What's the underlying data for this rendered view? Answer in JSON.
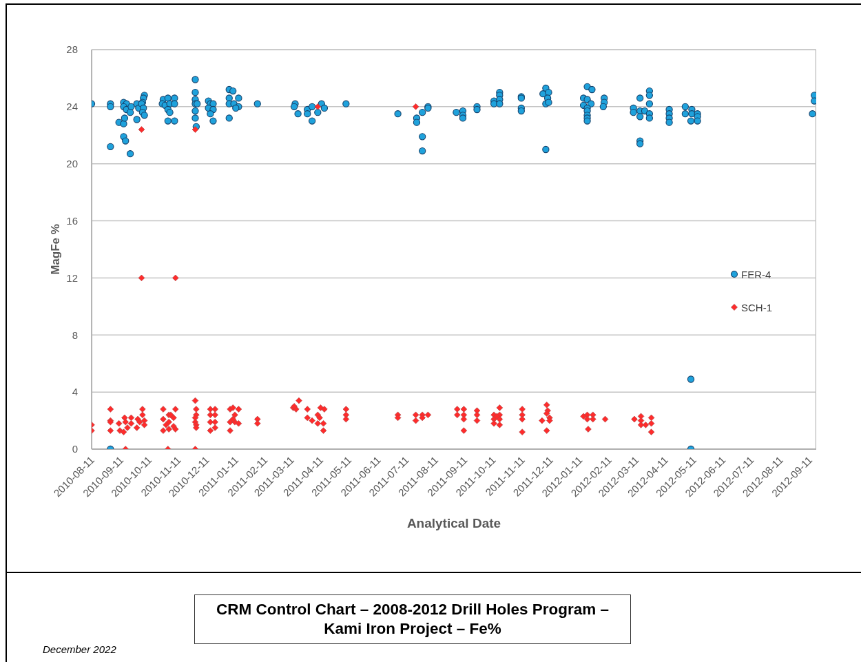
{
  "chart_data": {
    "type": "scatter",
    "title": "CRM Control Chart – 2008-2012 Drill Holes Program – Kami Iron Project – Fe%",
    "xlabel": "Analytical Date",
    "ylabel": "MagFe %",
    "annotations": [
      "December 2022"
    ],
    "xlim": [
      "2010-08-11",
      "2012-09-18"
    ],
    "xticks": [
      "2010-08-11",
      "2010-09-11",
      "2010-10-11",
      "2010-11-11",
      "2010-12-11",
      "2011-01-11",
      "2011-02-11",
      "2011-03-11",
      "2011-04-11",
      "2011-05-11",
      "2011-06-11",
      "2011-07-11",
      "2011-08-11",
      "2011-09-11",
      "2011-10-11",
      "2011-11-11",
      "2011-12-11",
      "2012-01-11",
      "2012-02-11",
      "2012-03-11",
      "2012-04-11",
      "2012-05-11",
      "2012-06-11",
      "2012-07-11",
      "2012-08-11",
      "2012-09-11"
    ],
    "ylim": [
      0,
      28
    ],
    "yticks": [
      0,
      4,
      8,
      12,
      16,
      20,
      24,
      28
    ],
    "grid": "y",
    "legend": "right",
    "series": [
      {
        "name": "FER-4",
        "color": "#1fa2dc",
        "marker": "circle",
        "x": [
          "2010-08-11",
          "2010-08-31",
          "2010-08-31",
          "2010-08-31",
          "2010-08-31",
          "2010-09-09",
          "2010-09-14",
          "2010-09-15",
          "2010-09-14",
          "2010-09-16",
          "2010-09-21",
          "2010-09-14",
          "2010-09-17",
          "2010-09-14",
          "2010-09-17",
          "2010-09-22",
          "2010-09-21",
          "2010-09-28",
          "2010-09-28",
          "2010-09-30",
          "2010-10-06",
          "2010-10-05",
          "2010-10-04",
          "2010-10-03",
          "2010-10-05",
          "2010-10-04",
          "2010-10-06",
          "2010-10-26",
          "2010-10-31",
          "2010-11-07",
          "2010-10-25",
          "2010-10-28",
          "2010-11-02",
          "2010-11-07",
          "2010-10-31",
          "2010-11-02",
          "2010-10-31",
          "2010-11-07",
          "2010-11-29",
          "2010-11-29",
          "2010-11-29",
          "2010-11-29",
          "2010-12-01",
          "2010-11-29",
          "2010-11-29",
          "2010-11-30",
          "2010-12-13",
          "2010-12-15",
          "2010-12-18",
          "2010-12-13",
          "2010-12-18",
          "2010-12-15",
          "2010-12-18",
          "2011-01-04",
          "2011-01-08",
          "2011-01-04",
          "2011-01-14",
          "2011-01-04",
          "2011-01-09",
          "2011-01-14",
          "2011-01-11",
          "2011-01-04",
          "2011-02-03",
          "2011-03-15",
          "2011-03-14",
          "2011-03-18",
          "2011-03-28",
          "2011-03-28",
          "2011-04-02",
          "2011-04-02",
          "2011-04-08",
          "2011-04-12",
          "2011-04-15",
          "2011-05-08",
          "2011-07-02",
          "2011-07-22",
          "2011-07-22",
          "2011-07-28",
          "2011-08-03",
          "2011-08-03",
          "2011-07-28",
          "2011-07-28",
          "2011-09-02",
          "2011-09-09",
          "2011-09-09",
          "2011-09-09",
          "2011-09-24",
          "2011-09-24",
          "2011-10-12",
          "2011-10-12",
          "2011-10-18",
          "2011-10-18",
          "2011-10-18",
          "2011-10-18",
          "2011-11-10",
          "2011-11-10",
          "2011-11-10",
          "2011-11-10",
          "2011-12-06",
          "2011-12-03",
          "2011-12-09",
          "2011-12-08",
          "2011-12-06",
          "2011-12-09",
          "2011-12-06",
          "2012-01-19",
          "2012-01-24",
          "2012-01-15",
          "2012-01-19",
          "2012-01-23",
          "2012-01-15",
          "2012-01-19",
          "2012-01-19",
          "2012-01-19",
          "2012-01-19",
          "2012-01-19",
          "2012-02-06",
          "2012-02-06",
          "2012-02-05",
          "2012-03-08",
          "2012-03-08",
          "2012-03-15",
          "2012-03-15",
          "2012-03-15",
          "2012-03-20",
          "2012-03-25",
          "2012-03-25",
          "2012-03-25",
          "2012-03-25",
          "2012-03-25",
          "2012-03-15",
          "2012-03-15",
          "2012-04-15",
          "2012-04-15",
          "2012-04-15",
          "2012-04-15",
          "2012-05-02",
          "2012-05-02",
          "2012-05-09",
          "2012-05-09",
          "2012-05-08",
          "2012-05-15",
          "2012-05-15",
          "2012-05-15",
          "2012-05-08",
          "2012-05-08",
          "2012-09-16",
          "2012-09-16",
          "2012-09-14"
        ],
        "values": [
          24.2,
          24.2,
          24.0,
          21.2,
          0.0,
          22.9,
          22.8,
          23.2,
          21.9,
          21.6,
          20.7,
          24.3,
          24.2,
          24.0,
          23.8,
          24.0,
          23.6,
          24.2,
          23.1,
          23.9,
          24.8,
          24.6,
          24.3,
          24.2,
          23.9,
          23.6,
          23.4,
          24.5,
          24.6,
          24.6,
          24.2,
          24.1,
          24.2,
          24.2,
          23.8,
          23.6,
          23.0,
          23.0,
          25.9,
          25.0,
          24.5,
          24.2,
          24.2,
          23.7,
          23.2,
          22.6,
          24.4,
          24.2,
          24.2,
          23.9,
          23.8,
          23.5,
          23.0,
          25.2,
          25.1,
          24.6,
          24.6,
          24.2,
          24.2,
          24.0,
          23.9,
          23.2,
          24.2,
          24.2,
          24.0,
          23.5,
          23.8,
          23.5,
          24.0,
          23.0,
          23.6,
          24.2,
          23.9,
          24.2,
          23.5,
          23.2,
          22.9,
          23.6,
          24.0,
          23.9,
          21.9,
          20.9,
          23.6,
          23.7,
          23.4,
          23.2,
          24.0,
          23.8,
          24.4,
          24.2,
          25.0,
          24.8,
          24.5,
          24.2,
          24.7,
          24.6,
          23.9,
          23.7,
          25.3,
          24.9,
          25.0,
          24.6,
          24.2,
          24.3,
          21.0,
          25.4,
          25.2,
          24.6,
          24.5,
          24.2,
          24.1,
          23.9,
          23.7,
          23.4,
          23.2,
          23.0,
          24.6,
          24.3,
          24.0,
          23.9,
          23.6,
          24.6,
          23.7,
          23.3,
          23.7,
          25.1,
          24.8,
          24.2,
          23.5,
          23.2,
          21.6,
          21.4,
          23.8,
          23.5,
          23.2,
          22.9,
          24.0,
          23.5,
          23.8,
          23.5,
          23.0,
          23.5,
          23.3,
          23.0,
          4.9,
          0.0,
          24.8,
          24.4,
          23.5
        ]
      },
      {
        "name": "SCH-1",
        "color": "#ff2b2b",
        "marker": "diamond",
        "x": [
          "2010-08-11",
          "2010-08-11",
          "2010-08-31",
          "2010-08-31",
          "2010-08-31",
          "2010-08-31",
          "2010-09-09",
          "2010-09-10",
          "2010-09-14",
          "2010-09-15",
          "2010-09-16",
          "2010-09-18",
          "2010-09-22",
          "2010-09-22",
          "2010-09-28",
          "2010-09-29",
          "2010-10-01",
          "2010-10-04",
          "2010-10-04",
          "2010-10-06",
          "2010-10-06",
          "2010-09-16",
          "2010-10-03",
          "2010-10-03",
          "2010-10-26",
          "2010-11-08",
          "2010-10-26",
          "2010-11-01",
          "2010-11-03",
          "2010-10-26",
          "2010-11-01",
          "2010-11-06",
          "2010-11-08",
          "2010-11-01",
          "2010-11-06",
          "2010-10-29",
          "2010-10-31",
          "2010-11-08",
          "2010-11-29",
          "2010-11-30",
          "2010-11-30",
          "2010-11-29",
          "2010-11-29",
          "2010-11-30",
          "2010-11-30",
          "2010-11-29",
          "2010-11-29",
          "2010-12-15",
          "2010-12-20",
          "2010-12-15",
          "2010-12-20",
          "2010-12-15",
          "2010-12-20",
          "2010-12-15",
          "2010-12-20",
          "2011-01-05",
          "2011-01-08",
          "2011-01-14",
          "2011-01-10",
          "2011-01-05",
          "2011-01-10",
          "2011-01-14",
          "2011-01-05",
          "2011-01-08",
          "2011-02-03",
          "2011-02-03",
          "2011-03-19",
          "2011-03-13",
          "2011-03-16",
          "2011-03-14",
          "2011-03-28",
          "2011-03-28",
          "2011-04-02",
          "2011-04-08",
          "2011-04-10",
          "2011-04-08",
          "2011-04-11",
          "2011-04-15",
          "2011-04-14",
          "2011-04-14",
          "2011-04-08",
          "2011-05-08",
          "2011-05-08",
          "2011-05-08",
          "2011-07-02",
          "2011-07-02",
          "2011-07-21",
          "2011-07-21",
          "2011-07-28",
          "2011-07-28",
          "2011-08-03",
          "2011-07-21",
          "2011-09-03",
          "2011-09-10",
          "2011-09-03",
          "2011-09-10",
          "2011-09-10",
          "2011-09-10",
          "2011-09-24",
          "2011-09-24",
          "2011-09-24",
          "2011-10-18",
          "2011-10-12",
          "2011-10-18",
          "2011-10-12",
          "2011-10-18",
          "2011-10-12",
          "2011-10-18",
          "2011-10-15",
          "2011-11-11",
          "2011-11-11",
          "2011-11-11",
          "2011-11-11",
          "2011-12-07",
          "2011-12-08",
          "2011-12-07",
          "2011-12-10",
          "2011-12-02",
          "2011-12-10",
          "2011-12-07",
          "2012-01-15",
          "2012-01-19",
          "2012-01-25",
          "2012-01-19",
          "2012-01-25",
          "2012-01-20",
          "2012-02-07",
          "2012-03-09",
          "2012-03-16",
          "2012-03-16",
          "2012-03-16",
          "2012-03-21",
          "2012-03-27",
          "2012-03-27",
          "2012-03-27"
        ],
        "values": [
          1.7,
          1.3,
          2.8,
          2.0,
          1.9,
          1.3,
          1.8,
          1.3,
          1.2,
          2.2,
          1.9,
          1.5,
          2.2,
          1.8,
          1.5,
          2.1,
          1.9,
          2.8,
          2.4,
          2.0,
          1.7,
          0.0,
          22.4,
          12.0,
          2.8,
          2.8,
          2.1,
          2.4,
          2.4,
          1.3,
          1.9,
          1.6,
          1.4,
          1.4,
          2.2,
          1.7,
          0.0,
          12.0,
          3.4,
          2.8,
          2.4,
          2.2,
          1.9,
          1.7,
          1.5,
          0.0,
          22.4,
          2.8,
          2.8,
          2.4,
          2.4,
          1.9,
          1.9,
          1.3,
          1.5,
          2.8,
          2.9,
          2.8,
          2.4,
          1.9,
          1.9,
          1.8,
          1.3,
          2.1,
          2.1,
          1.8,
          3.4,
          2.9,
          2.8,
          3.0,
          2.8,
          2.2,
          2.0,
          2.4,
          2.2,
          1.8,
          2.9,
          2.8,
          1.8,
          1.3,
          24.0,
          2.8,
          2.4,
          2.1,
          2.4,
          2.2,
          2.4,
          2.0,
          2.4,
          2.2,
          2.4,
          24.0,
          2.8,
          2.8,
          2.4,
          2.4,
          2.1,
          1.3,
          2.7,
          2.4,
          2.0,
          2.9,
          2.4,
          2.4,
          2.1,
          2.1,
          1.8,
          1.7,
          2.3,
          2.8,
          2.4,
          2.1,
          1.2,
          3.1,
          2.7,
          2.5,
          2.2,
          2.0,
          2.0,
          1.3,
          2.3,
          2.4,
          2.4,
          2.1,
          2.1,
          1.4,
          2.1,
          2.1,
          2.3,
          2.0,
          1.7,
          1.7,
          2.2,
          1.8,
          1.2
        ]
      }
    ]
  }
}
